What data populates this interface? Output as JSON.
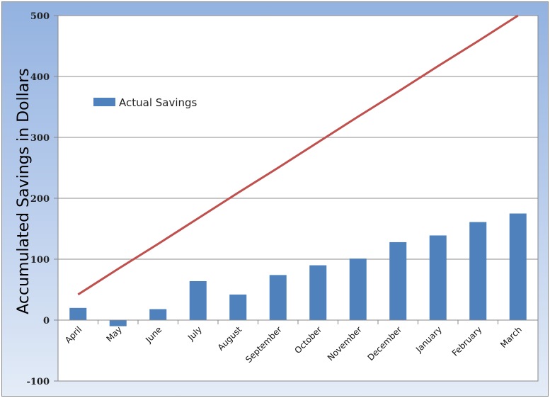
{
  "chart_data": {
    "type": "bar",
    "title": "",
    "xlabel": "",
    "ylabel": "Accumulated Savings in Dollars",
    "ylim": [
      -100,
      500
    ],
    "yticks": [
      -100,
      0,
      100,
      200,
      300,
      400,
      500
    ],
    "grid": true,
    "legend_position": "top-left",
    "categories": [
      "April",
      "May",
      "June",
      "July",
      "August",
      "September",
      "October",
      "November",
      "December",
      "January",
      "February",
      "March"
    ],
    "series": [
      {
        "name": "Actual Savings",
        "type": "bar",
        "color": "#4f81bd",
        "values": [
          20,
          -10,
          18,
          64,
          42,
          74,
          90,
          101,
          128,
          139,
          161,
          175
        ]
      },
      {
        "name": "",
        "type": "line",
        "color": "#c0504d",
        "values": [
          42,
          84,
          125,
          167,
          209,
          250,
          292,
          334,
          375,
          417,
          458,
          500
        ]
      }
    ]
  }
}
